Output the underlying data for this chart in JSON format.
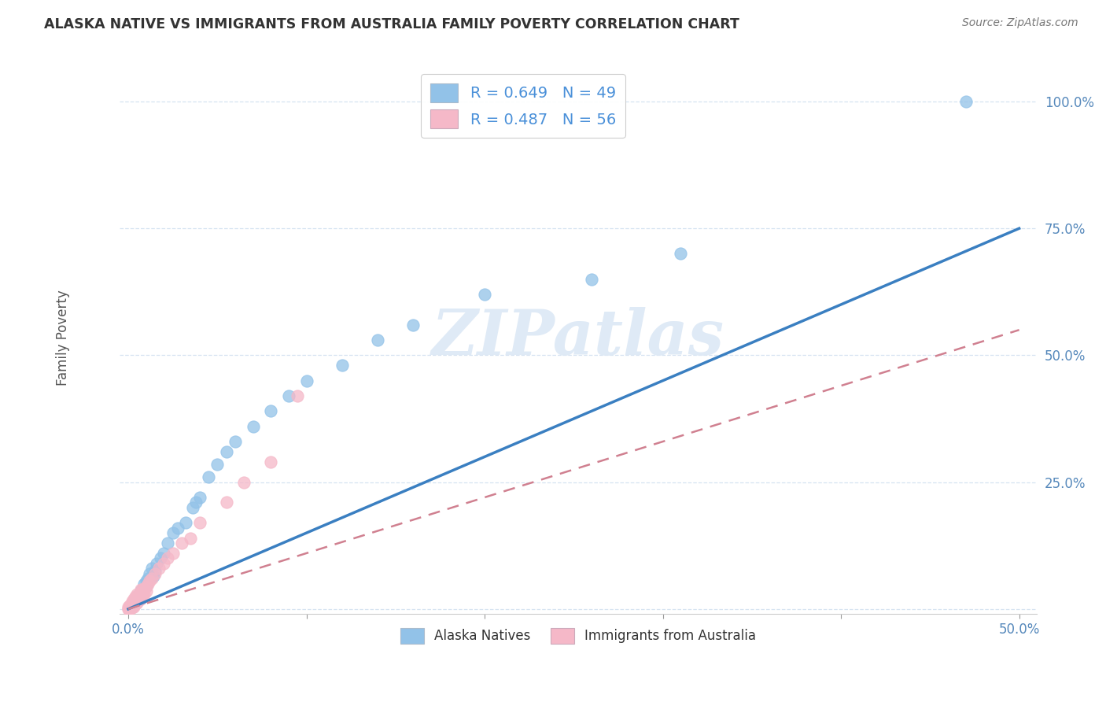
{
  "title": "ALASKA NATIVE VS IMMIGRANTS FROM AUSTRALIA FAMILY POVERTY CORRELATION CHART",
  "source": "Source: ZipAtlas.com",
  "ylabel": "Family Poverty",
  "xlim": [
    -0.005,
    0.51
  ],
  "ylim": [
    -0.01,
    1.08
  ],
  "xticks": [
    0.0,
    0.1,
    0.2,
    0.3,
    0.4,
    0.5
  ],
  "xticklabels": [
    "0.0%",
    "",
    "",
    "",
    "",
    "50.0%"
  ],
  "yticks": [
    0.0,
    0.25,
    0.5,
    0.75,
    1.0
  ],
  "yticklabels": [
    "",
    "25.0%",
    "50.0%",
    "75.0%",
    "100.0%"
  ],
  "legend1_R": "0.649",
  "legend1_N": "49",
  "legend2_R": "0.487",
  "legend2_N": "56",
  "blue_color": "#92C2E8",
  "pink_color": "#F5B8C8",
  "blue_line_color": "#3A7FC1",
  "pink_line_color": "#D08090",
  "title_color": "#333333",
  "source_color": "#777777",
  "watermark": "ZIPatlas",
  "alaska_natives_x": [
    0.002,
    0.003,
    0.003,
    0.004,
    0.004,
    0.005,
    0.005,
    0.006,
    0.006,
    0.006,
    0.007,
    0.007,
    0.007,
    0.008,
    0.008,
    0.009,
    0.009,
    0.01,
    0.01,
    0.011,
    0.012,
    0.013,
    0.014,
    0.015,
    0.016,
    0.018,
    0.02,
    0.022,
    0.025,
    0.028,
    0.032,
    0.036,
    0.038,
    0.04,
    0.045,
    0.05,
    0.055,
    0.06,
    0.07,
    0.08,
    0.09,
    0.1,
    0.12,
    0.14,
    0.16,
    0.2,
    0.26,
    0.31,
    0.47
  ],
  "alaska_natives_y": [
    0.005,
    0.01,
    0.015,
    0.01,
    0.02,
    0.025,
    0.015,
    0.025,
    0.03,
    0.018,
    0.022,
    0.028,
    0.035,
    0.03,
    0.038,
    0.04,
    0.05,
    0.045,
    0.055,
    0.06,
    0.07,
    0.08,
    0.065,
    0.075,
    0.09,
    0.1,
    0.11,
    0.13,
    0.15,
    0.16,
    0.17,
    0.2,
    0.21,
    0.22,
    0.26,
    0.285,
    0.31,
    0.33,
    0.36,
    0.39,
    0.42,
    0.45,
    0.48,
    0.53,
    0.56,
    0.62,
    0.65,
    0.7,
    1.0
  ],
  "immigrants_x": [
    0.0,
    0.0,
    0.0,
    0.001,
    0.001,
    0.001,
    0.001,
    0.002,
    0.002,
    0.002,
    0.002,
    0.002,
    0.003,
    0.003,
    0.003,
    0.003,
    0.003,
    0.004,
    0.004,
    0.004,
    0.004,
    0.004,
    0.005,
    0.005,
    0.005,
    0.005,
    0.005,
    0.006,
    0.006,
    0.006,
    0.007,
    0.007,
    0.007,
    0.007,
    0.008,
    0.008,
    0.008,
    0.009,
    0.009,
    0.01,
    0.01,
    0.011,
    0.012,
    0.013,
    0.015,
    0.017,
    0.02,
    0.022,
    0.025,
    0.03,
    0.035,
    0.04,
    0.055,
    0.065,
    0.08,
    0.095
  ],
  "immigrants_y": [
    0.0,
    0.002,
    0.004,
    0.0,
    0.002,
    0.005,
    0.008,
    0.003,
    0.006,
    0.01,
    0.012,
    0.015,
    0.005,
    0.008,
    0.012,
    0.015,
    0.02,
    0.01,
    0.012,
    0.016,
    0.02,
    0.025,
    0.012,
    0.015,
    0.02,
    0.025,
    0.03,
    0.018,
    0.022,
    0.028,
    0.02,
    0.025,
    0.032,
    0.038,
    0.025,
    0.03,
    0.038,
    0.03,
    0.04,
    0.035,
    0.045,
    0.05,
    0.055,
    0.06,
    0.07,
    0.08,
    0.09,
    0.1,
    0.11,
    0.13,
    0.14,
    0.17,
    0.21,
    0.25,
    0.29,
    0.42
  ],
  "blue_line_x0": 0.0,
  "blue_line_y0": 0.0,
  "blue_line_x1": 0.5,
  "blue_line_y1": 0.75,
  "pink_line_x0": 0.0,
  "pink_line_y0": 0.0,
  "pink_line_x1": 0.5,
  "pink_line_y1": 0.55
}
